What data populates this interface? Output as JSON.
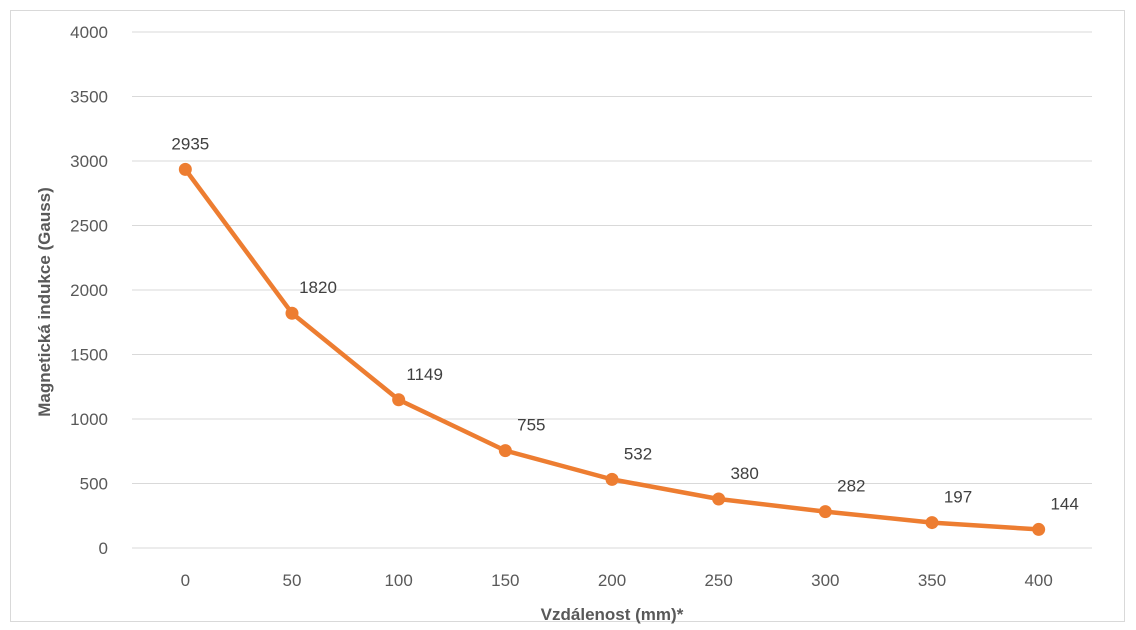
{
  "chart_data": {
    "type": "line",
    "title": "",
    "xlabel": "Vzdálenost (mm)*",
    "ylabel": "Magnetická indukce (Gauss)",
    "categories": [
      "0",
      "50",
      "100",
      "150",
      "200",
      "250",
      "300",
      "350",
      "400"
    ],
    "series": [
      {
        "values": [
          2935,
          1820,
          1149,
          755,
          532,
          380,
          282,
          197,
          144
        ]
      }
    ],
    "data_labels": [
      "2935",
      "1820",
      "1149",
      "755",
      "532",
      "380",
      "282",
      "197",
      "144"
    ],
    "y_ticks": [
      "0",
      "500",
      "1000",
      "1500",
      "2000",
      "2500",
      "3000",
      "3500",
      "4000"
    ],
    "ylim": [
      0,
      4000
    ],
    "grid": true,
    "legend": "none",
    "colors": {
      "series": "#ed7d31",
      "grid": "#d9d9d9",
      "text": "#595959"
    }
  }
}
